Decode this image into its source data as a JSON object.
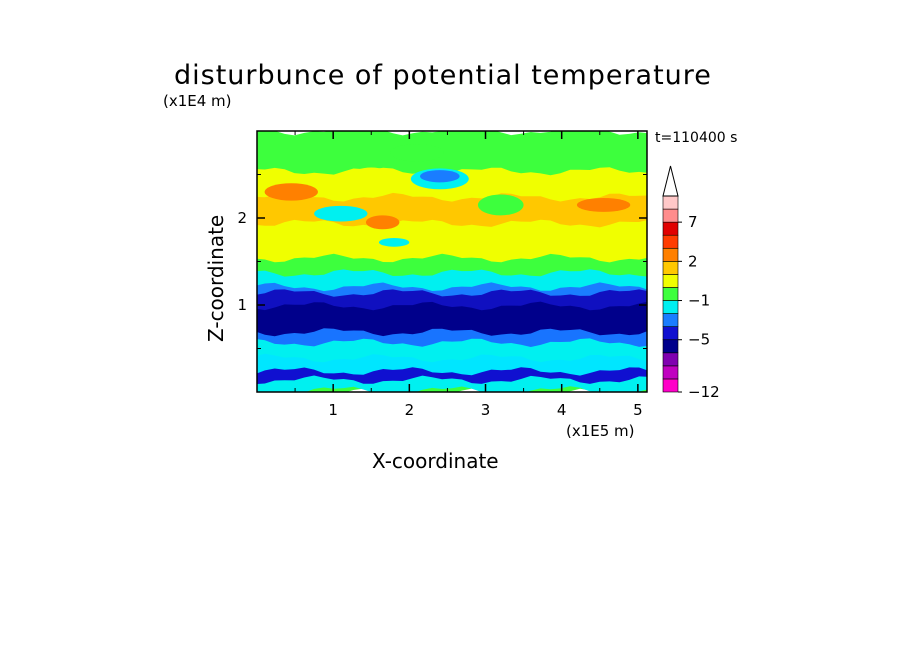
{
  "chart_data": {
    "type": "heatmap",
    "title": "disturbunce of potential temperature",
    "xlabel": "X-coordinate",
    "ylabel": "Z-coordinate",
    "x_exponent": "(x1E5 m)",
    "y_exponent": "(x1E4 m)",
    "time_label": "t=110400 s",
    "xlim": [
      0,
      5.12
    ],
    "ylim": [
      0,
      3.0
    ],
    "x_ticks": [
      1,
      2,
      3,
      4,
      5
    ],
    "y_ticks": [
      1,
      2
    ],
    "z_bands": [
      {
        "z0": 0.0,
        "z1": 0.03,
        "color": "#3dff3d"
      },
      {
        "z0": 0.03,
        "z1": 0.15,
        "color": "#00f0f0"
      },
      {
        "z0": 0.15,
        "z1": 0.25,
        "color": "#1010d0"
      },
      {
        "z0": 0.25,
        "z1": 0.4,
        "color": "#00e6ff"
      },
      {
        "z0": 0.4,
        "z1": 0.58,
        "color": "#00f0f0"
      },
      {
        "z0": 0.58,
        "z1": 0.7,
        "color": "#1874ff"
      },
      {
        "z0": 0.7,
        "z1": 1.0,
        "color": "#00008b"
      },
      {
        "z0": 1.0,
        "z1": 1.15,
        "color": "#1010c0"
      },
      {
        "z0": 1.15,
        "z1": 1.22,
        "color": "#1a7dff"
      },
      {
        "z0": 1.22,
        "z1": 1.38,
        "color": "#00f0f0"
      },
      {
        "z0": 1.38,
        "z1": 1.55,
        "color": "#3dff3d"
      },
      {
        "z0": 1.55,
        "z1": 1.95,
        "color": "#f0ff00"
      },
      {
        "z0": 1.95,
        "z1": 2.25,
        "color": "#ffc800"
      },
      {
        "z0": 2.25,
        "z1": 2.55,
        "color": "#f0ff00"
      },
      {
        "z0": 2.55,
        "z1": 3.0,
        "color": "#3dff3d"
      }
    ],
    "colorbar": {
      "colors": [
        "#ff00c8",
        "#c000c0",
        "#8000b0",
        "#00008b",
        "#1010d0",
        "#1a7dff",
        "#00f0f0",
        "#3dff3d",
        "#f0ff00",
        "#ffc800",
        "#ff8000",
        "#ff3c00",
        "#e00000",
        "#ff8c8c",
        "#ffc8c8"
      ],
      "labels": [
        {
          "value": "-12",
          "index": 0
        },
        {
          "value": "-5",
          "index": 4
        },
        {
          "value": "-1",
          "index": 7
        },
        {
          "value": "2",
          "index": 10
        },
        {
          "value": "7",
          "index": 13
        }
      ]
    }
  }
}
